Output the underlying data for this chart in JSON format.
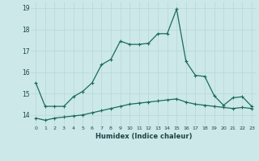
{
  "xlabel": "Humidex (Indice chaleur)",
  "background_color": "#cce8e8",
  "line_color": "#1a6b5a",
  "grid_color": "#b8d8d8",
  "x": [
    0,
    1,
    2,
    3,
    4,
    5,
    6,
    7,
    8,
    9,
    10,
    11,
    12,
    13,
    14,
    15,
    16,
    17,
    18,
    19,
    20,
    21,
    22,
    23
  ],
  "y_upper": [
    15.5,
    14.4,
    14.4,
    14.4,
    14.85,
    15.1,
    15.5,
    16.35,
    16.6,
    17.45,
    17.3,
    17.3,
    17.35,
    17.8,
    17.8,
    18.95,
    16.5,
    15.85,
    15.8,
    14.9,
    14.45,
    14.8,
    14.85,
    14.4
  ],
  "y_lower": [
    13.85,
    13.75,
    13.85,
    13.9,
    13.95,
    14.0,
    14.1,
    14.2,
    14.3,
    14.4,
    14.5,
    14.55,
    14.6,
    14.65,
    14.7,
    14.75,
    14.6,
    14.5,
    14.45,
    14.4,
    14.35,
    14.3,
    14.35,
    14.3
  ],
  "ylim": [
    13.5,
    19.3
  ],
  "yticks": [
    14,
    15,
    16,
    17,
    18,
    19
  ],
  "xticks": [
    0,
    1,
    2,
    3,
    4,
    5,
    6,
    7,
    8,
    9,
    10,
    11,
    12,
    13,
    14,
    15,
    16,
    17,
    18,
    19,
    20,
    21,
    22,
    23
  ],
  "marker": "+",
  "marker_size": 3,
  "line_width": 0.9
}
